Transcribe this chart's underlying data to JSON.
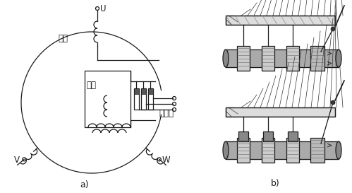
{
  "bg_color": "#ffffff",
  "line_color": "#1a1a1a",
  "label_a": "a)",
  "label_b": "b)",
  "label_U": "U",
  "label_V": "V",
  "label_W": "W",
  "label_dingzi": "定子",
  "label_zhuanzi": "转子",
  "label_jidianhu": "集电环",
  "annotation_fontsize": 8.5,
  "label_fontsize": 9
}
